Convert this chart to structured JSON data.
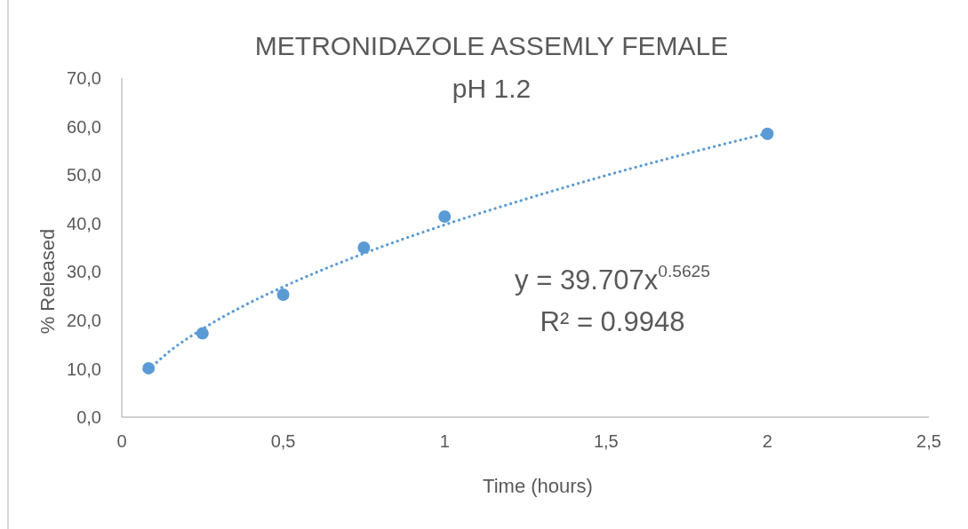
{
  "chart_data": {
    "type": "scatter",
    "title": "METRONIDAZOLE ASSEMLY FEMALE",
    "subtitle": "pH 1.2",
    "xlabel": "Time (hours)",
    "ylabel": "% Released",
    "annotations": [
      "y = 39.707x$^{0.5625}$",
      "R² = 0.9948"
    ],
    "series": [
      {
        "color": "#5b9bd5",
        "marker": "circle",
        "x": [
          0.083,
          0.25,
          0.5,
          0.75,
          1,
          2
        ],
        "values": [
          10.1,
          17.3,
          25.3,
          35.0,
          41.4,
          58.5
        ]
      },
      {
        "type": "line",
        "color": "#5b9bd5",
        "line_style": "dotted",
        "marker": "none",
        "x": [
          0.083,
          0.15,
          0.25,
          0.375,
          0.5,
          0.75,
          1,
          1.25,
          1.5,
          1.75,
          2
        ],
        "values": [
          9.8,
          13.7,
          18.2,
          22.9,
          26.9,
          33.8,
          39.7,
          45.0,
          49.9,
          54.4,
          58.6
        ]
      }
    ],
    "xlim": [
      0,
      2.5
    ],
    "xticks": [
      0,
      {
        "value": 0.5,
        "label": "0,5"
      },
      1,
      {
        "value": 1.5,
        "label": "1,5"
      },
      2,
      {
        "value": 2.5,
        "label": "2,5"
      }
    ],
    "ylim": [
      0,
      70
    ],
    "yticks": [
      {
        "value": 0,
        "label": "0,0"
      },
      {
        "value": 10,
        "label": "10,0"
      },
      {
        "value": 20,
        "label": "20,0"
      },
      {
        "value": 30,
        "label": "30,0"
      },
      {
        "value": 40,
        "label": "40,0"
      },
      {
        "value": 50,
        "label": "50,0"
      },
      {
        "value": 60,
        "label": "60,0"
      },
      {
        "value": 70,
        "label": "70,0"
      }
    ]
  }
}
